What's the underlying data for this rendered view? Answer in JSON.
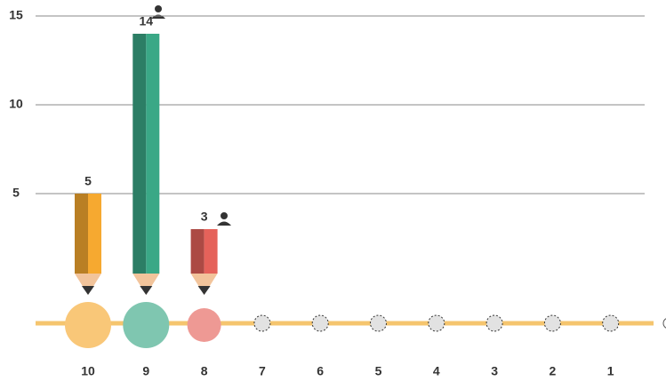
{
  "chart_data": {
    "type": "pencil-bar",
    "categories": [
      "10",
      "9",
      "8",
      "7",
      "6",
      "5",
      "4",
      "3",
      "2",
      "1"
    ],
    "values": [
      5,
      14,
      3,
      null,
      null,
      null,
      null,
      null,
      null,
      null
    ],
    "colors": [
      "#f6a930",
      "#3aa886",
      "#e5625a"
    ],
    "ylim": [
      0,
      15
    ],
    "yticks": [
      5,
      10,
      15
    ],
    "grid": true
  }
}
